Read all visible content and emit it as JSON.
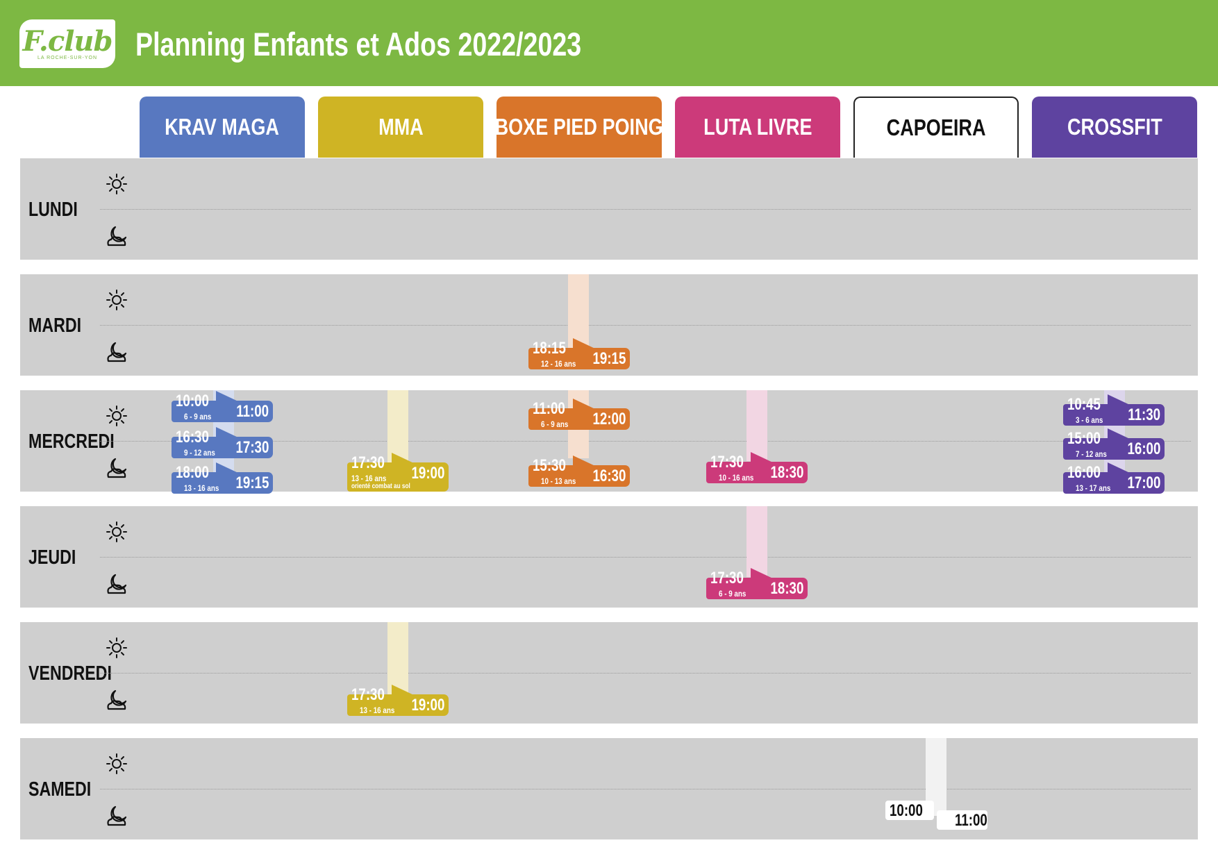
{
  "header": {
    "title": "Planning Enfants et Ados 2022/2023",
    "logo_text": "F.club",
    "logo_sub": "LA ROCHE-SUR-YON",
    "background_color": "#7db843"
  },
  "sports": [
    {
      "label": "KRAV MAGA",
      "color": "#5878c0"
    },
    {
      "label": "MMA",
      "color": "#cfb424"
    },
    {
      "label": "BOXE PIED POING",
      "color": "#d9752a"
    },
    {
      "label": "LUTA LIVRE",
      "color": "#cc3a7a"
    },
    {
      "label": "CAPOEIRA",
      "color": "#ffffff"
    },
    {
      "label": "CROSSFIT",
      "color": "#5e43a0"
    }
  ],
  "days": [
    "LUNDI",
    "MARDI",
    "MERCREDI",
    "JEUDI",
    "VENDREDI",
    "SAMEDI"
  ],
  "icons": {
    "morning": "sun-icon",
    "evening": "moon-cloud-icon"
  },
  "sessions": [
    {
      "day": "MARDI",
      "sport": "BOXE PIED POING",
      "start": "18:15",
      "end": "19:15",
      "ages": "12 - 16 ans"
    },
    {
      "day": "MERCREDI",
      "sport": "KRAV MAGA",
      "start": "10:00",
      "end": "11:00",
      "ages": "6 - 9 ans"
    },
    {
      "day": "MERCREDI",
      "sport": "KRAV MAGA",
      "start": "16:30",
      "end": "17:30",
      "ages": "9 - 12 ans"
    },
    {
      "day": "MERCREDI",
      "sport": "KRAV MAGA",
      "start": "18:00",
      "end": "19:15",
      "ages": "13 - 16 ans"
    },
    {
      "day": "MERCREDI",
      "sport": "MMA",
      "start": "17:30",
      "end": "19:00",
      "ages": "13 - 16 ans",
      "note": "orienté combat au sol"
    },
    {
      "day": "MERCREDI",
      "sport": "BOXE PIED POING",
      "start": "11:00",
      "end": "12:00",
      "ages": "6 - 9 ans"
    },
    {
      "day": "MERCREDI",
      "sport": "BOXE PIED POING",
      "start": "15:30",
      "end": "16:30",
      "ages": "10 - 13 ans"
    },
    {
      "day": "MERCREDI",
      "sport": "LUTA LIVRE",
      "start": "17:30",
      "end": "18:30",
      "ages": "10 - 16 ans"
    },
    {
      "day": "MERCREDI",
      "sport": "CROSSFIT",
      "start": "10:45",
      "end": "11:30",
      "ages": "3 - 6 ans"
    },
    {
      "day": "MERCREDI",
      "sport": "CROSSFIT",
      "start": "15:00",
      "end": "16:00",
      "ages": "7 - 12 ans"
    },
    {
      "day": "MERCREDI",
      "sport": "CROSSFIT",
      "start": "16:00",
      "end": "17:00",
      "ages": "13 - 17 ans"
    },
    {
      "day": "JEUDI",
      "sport": "LUTA LIVRE",
      "start": "17:30",
      "end": "18:30",
      "ages": "6 - 9 ans"
    },
    {
      "day": "VENDREDI",
      "sport": "MMA",
      "start": "17:30",
      "end": "19:00",
      "ages": "13 - 16 ans"
    },
    {
      "day": "SAMEDI",
      "sport": "CAPOEIRA",
      "start": "10:00",
      "end": "11:00",
      "ages": ""
    }
  ]
}
